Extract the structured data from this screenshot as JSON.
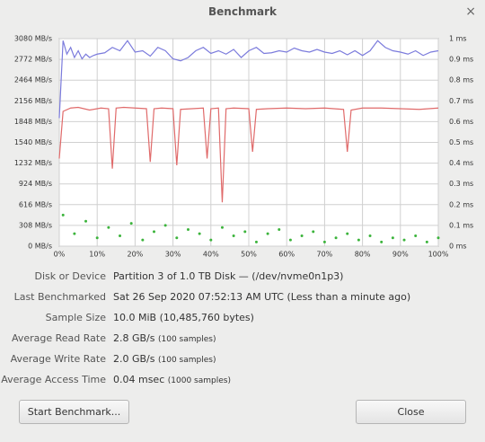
{
  "window": {
    "title": "Benchmark",
    "close": "×"
  },
  "chart_data": {
    "type": "line",
    "xlim": [
      0,
      100
    ],
    "xticks": [
      {
        "value": 0,
        "label": "0%"
      },
      {
        "value": 10,
        "label": "10%"
      },
      {
        "value": 20,
        "label": "20%"
      },
      {
        "value": 30,
        "label": "30%"
      },
      {
        "value": 40,
        "label": "40%"
      },
      {
        "value": 50,
        "label": "50%"
      },
      {
        "value": 60,
        "label": "60%"
      },
      {
        "value": 70,
        "label": "70%"
      },
      {
        "value": 80,
        "label": "80%"
      },
      {
        "value": 90,
        "label": "90%"
      },
      {
        "value": 100,
        "label": "100%"
      }
    ],
    "ylim": [
      0,
      3080
    ],
    "yticks": [
      {
        "value": 0,
        "label": "0 MB/s"
      },
      {
        "value": 308,
        "label": "308 MB/s"
      },
      {
        "value": 616,
        "label": "616 MB/s"
      },
      {
        "value": 924,
        "label": "924 MB/s"
      },
      {
        "value": 1232,
        "label": "1232 MB/s"
      },
      {
        "value": 1540,
        "label": "1540 MB/s"
      },
      {
        "value": 1848,
        "label": "1848 MB/s"
      },
      {
        "value": 2156,
        "label": "2156 MB/s"
      },
      {
        "value": 2464,
        "label": "2464 MB/s"
      },
      {
        "value": 2772,
        "label": "2772 MB/s"
      },
      {
        "value": 3080,
        "label": "3080 MB/s"
      }
    ],
    "y2lim": [
      0,
      1
    ],
    "y2ticks": [
      {
        "value": 0,
        "label": "0 ms"
      },
      {
        "value": 0.1,
        "label": "0.1 ms"
      },
      {
        "value": 0.2,
        "label": "0.2 ms"
      },
      {
        "value": 0.3,
        "label": "0.3 ms"
      },
      {
        "value": 0.4,
        "label": "0.4 ms"
      },
      {
        "value": 0.5,
        "label": "0.5 ms"
      },
      {
        "value": 0.6,
        "label": "0.6 ms"
      },
      {
        "value": 0.7,
        "label": "0.7 ms"
      },
      {
        "value": 0.8,
        "label": "0.8 ms"
      },
      {
        "value": 0.9,
        "label": "0.9 ms"
      },
      {
        "value": 1,
        "label": "1 ms"
      }
    ],
    "grid": true,
    "series": [
      {
        "color": "#7b7bdc",
        "x": [
          0,
          1,
          2,
          3,
          4,
          5,
          6,
          7,
          8,
          9,
          10,
          12,
          14,
          16,
          18,
          20,
          22,
          24,
          26,
          28,
          30,
          32,
          34,
          36,
          38,
          40,
          42,
          44,
          46,
          48,
          50,
          52,
          54,
          56,
          58,
          60,
          62,
          64,
          66,
          68,
          70,
          72,
          74,
          76,
          78,
          80,
          82,
          84,
          86,
          88,
          90,
          92,
          94,
          96,
          98,
          100
        ],
        "values": [
          1900,
          3050,
          2850,
          2950,
          2800,
          2900,
          2780,
          2850,
          2800,
          2830,
          2850,
          2870,
          2950,
          2900,
          3050,
          2880,
          2900,
          2820,
          2950,
          2900,
          2780,
          2750,
          2800,
          2900,
          2950,
          2860,
          2900,
          2850,
          2920,
          2800,
          2900,
          2950,
          2860,
          2870,
          2900,
          2880,
          2940,
          2900,
          2880,
          2920,
          2880,
          2860,
          2900,
          2840,
          2900,
          2830,
          2900,
          3050,
          2950,
          2900,
          2880,
          2850,
          2900,
          2830,
          2880,
          2900
        ]
      },
      {
        "color": "#e06a6a",
        "x": [
          0,
          1,
          3,
          5,
          8,
          11,
          13,
          14,
          15,
          17,
          20,
          23,
          24,
          25,
          27,
          30,
          31,
          32,
          35,
          38,
          39,
          40,
          42,
          43,
          44,
          46,
          50,
          51,
          52,
          55,
          60,
          65,
          70,
          75,
          76,
          77,
          80,
          85,
          90,
          95,
          100
        ],
        "values": [
          1300,
          2000,
          2050,
          2060,
          2020,
          2050,
          2040,
          1150,
          2050,
          2060,
          2050,
          2040,
          1250,
          2040,
          2050,
          2040,
          1200,
          2030,
          2040,
          2050,
          1300,
          2040,
          2050,
          650,
          2040,
          2050,
          2040,
          1400,
          2030,
          2040,
          2050,
          2040,
          2050,
          2030,
          1400,
          2020,
          2050,
          2050,
          2040,
          2030,
          2050
        ]
      },
      {
        "type": "scatter",
        "axis": "y2",
        "color": "#3cb43c",
        "x": [
          1,
          4,
          7,
          10,
          13,
          16,
          19,
          22,
          25,
          28,
          31,
          34,
          37,
          40,
          43,
          46,
          49,
          52,
          55,
          58,
          61,
          64,
          67,
          70,
          73,
          76,
          79,
          82,
          85,
          88,
          91,
          94,
          97,
          100
        ],
        "values": [
          0.15,
          0.06,
          0.12,
          0.04,
          0.09,
          0.05,
          0.11,
          0.03,
          0.07,
          0.1,
          0.04,
          0.08,
          0.06,
          0.03,
          0.09,
          0.05,
          0.07,
          0.02,
          0.06,
          0.08,
          0.03,
          0.05,
          0.07,
          0.02,
          0.04,
          0.06,
          0.03,
          0.05,
          0.02,
          0.04,
          0.03,
          0.05,
          0.02,
          0.04
        ]
      }
    ]
  },
  "info": {
    "rows": [
      {
        "label": "Disk or Device",
        "value": "Partition 3 of 1.0 TB Disk — (/dev/nvme0n1p3)"
      },
      {
        "label": "Last Benchmarked",
        "value": "Sat 26 Sep 2020 07:52:13 AM UTC (Less than a minute ago)"
      },
      {
        "label": "Sample Size",
        "value": "10.0 MiB (10,485,760 bytes)"
      },
      {
        "label": "Average Read Rate",
        "value": "2.8 GB/s",
        "detail": "(100 samples)"
      },
      {
        "label": "Average Write Rate",
        "value": "2.0 GB/s",
        "detail": "(100 samples)"
      },
      {
        "label": "Average Access Time",
        "value": "0.04 msec",
        "detail": "(1000 samples)"
      }
    ]
  },
  "buttons": {
    "start": "Start Benchmark...",
    "close": "Close"
  }
}
